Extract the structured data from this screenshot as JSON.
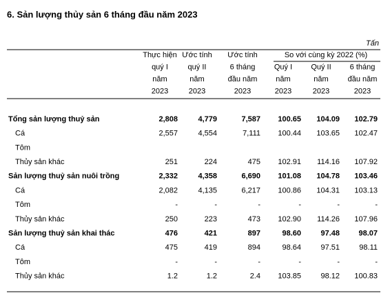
{
  "title": "6. Sản lượng thủy sản 6 tháng đầu năm 2023",
  "unit": "Tấn",
  "header": {
    "columns": [
      [
        "Thực hiện",
        "quý I",
        "năm",
        "2023"
      ],
      [
        "Ước tính",
        "quý II",
        "năm",
        "2023"
      ],
      [
        "Ước tính",
        "6 tháng",
        "đầu năm",
        "2023"
      ]
    ],
    "group": "So với cùng kỳ 2022  (%)",
    "group_columns": [
      [
        "Quý I",
        "năm",
        "2023"
      ],
      [
        "Quý II",
        "năm",
        "2023"
      ],
      [
        "6 tháng",
        "đầu năm",
        "2023"
      ]
    ]
  },
  "table": {
    "rows": [
      {
        "label": "Tổng sản lượng thuỷ sản",
        "bold": true,
        "values": [
          "2,808",
          "4,779",
          "7,587",
          "100.65",
          "104.09",
          "102.79"
        ]
      },
      {
        "label": "Cá",
        "values": [
          "2,557",
          "4,554",
          "7,111",
          "100.44",
          "103.65",
          "102.47"
        ]
      },
      {
        "label": "Tôm"
      },
      {
        "label": "Thủy sản khác",
        "values": [
          "251",
          "224",
          "475",
          "102.91",
          "114.16",
          "107.92"
        ]
      },
      {
        "label": "Sản lượng thuỷ sản nuôi trồng",
        "bold": true,
        "values": [
          "2,332",
          "4,358",
          "6,690",
          "101.08",
          "104.78",
          "103.46"
        ]
      },
      {
        "label": "Cá",
        "values": [
          "2,082",
          "4,135",
          "6,217",
          "100.86",
          "104.31",
          "103.13"
        ]
      },
      {
        "label": "Tôm",
        "values": [
          "-",
          "-",
          "-",
          "-",
          "-",
          "-"
        ]
      },
      {
        "label": "Thủy sản khác",
        "values": [
          "250",
          "223",
          "473",
          "102.90",
          "114.26",
          "107.96"
        ]
      },
      {
        "label": "Sản lượng thuỷ sản khai thác",
        "bold": true,
        "values": [
          "476",
          "421",
          "897",
          "98.60",
          "97.48",
          "98.07"
        ]
      },
      {
        "label": "Cá",
        "values": [
          "475",
          "419",
          "894",
          "98.64",
          "97.51",
          "98.11"
        ]
      },
      {
        "label": "Tôm",
        "values": [
          "-",
          "-",
          "-",
          "-",
          "-",
          "-"
        ]
      },
      {
        "label": "Thủy sản khác",
        "values": [
          "1.2",
          "1.2",
          "2.4",
          "103.85",
          "98.12",
          "100.83"
        ]
      }
    ]
  }
}
